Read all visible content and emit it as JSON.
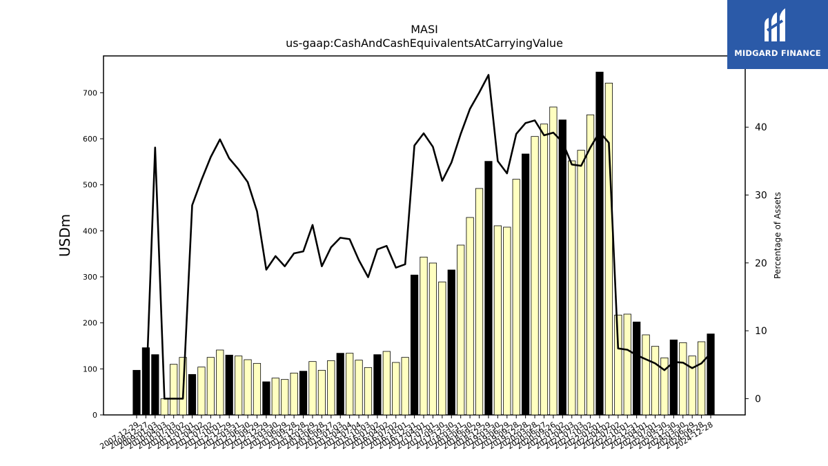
{
  "brand": {
    "name": "MIDGARD FINANCE",
    "color": "#2b5aa8"
  },
  "chart_data": {
    "type": "bar",
    "title": "MASI",
    "subtitle": "us-gaap:CashAndCashEquivalentsAtCarryingValue",
    "ylabel": "USDm",
    "y2label": "Percentage of Assets",
    "ylim": [
      0,
      780
    ],
    "y2lim": [
      -2.4,
      50.5
    ],
    "yticks": [
      0,
      100,
      200,
      300,
      400,
      500,
      600,
      700
    ],
    "y2ticks": [
      0,
      10,
      20,
      30,
      40
    ],
    "legend": "none",
    "grid": false,
    "colors": {
      "fy_bar": "#000000",
      "quarter_bar": "#ffffc0",
      "line": "#000000"
    },
    "categories": [
      "2007-12-29",
      "2008-12-27",
      "2009-01-03",
      "2010-04-03",
      "2010-07-03",
      "2010-10-02",
      "2011-01-01",
      "2011-04-02",
      "2011-07-02",
      "2011-10-01",
      "2012-12-29",
      "2012-03-31",
      "2012-06-30",
      "2012-09-29",
      "2012-12-29",
      "2013-03-30",
      "2013-06-29",
      "2013-09-28",
      "2013-12-28",
      "2014-03-29",
      "2014-06-28",
      "2014-09-27",
      "2015-01-03",
      "2015-04-04",
      "2015-07-04",
      "2015-10-03",
      "2016-01-02",
      "2016-04-02",
      "2016-07-02",
      "2016-10-01",
      "2016-12-31",
      "2017-04-01",
      "2017-07-01",
      "2017-09-30",
      "2017-12-30",
      "2018-03-31",
      "2018-06-30",
      "2018-09-29",
      "2018-12-29",
      "2019-03-30",
      "2019-06-29",
      "2019-09-28",
      "2019-12-28",
      "2020-03-28",
      "2020-06-27",
      "2020-09-26",
      "2021-01-02",
      "2021-04-03",
      "2021-07-03",
      "2021-10-02",
      "2022-01-01",
      "2022-04-02",
      "2022-07-02",
      "2022-10-01",
      "2022-12-31",
      "2023-04-01",
      "2023-07-01",
      "2023-09-30",
      "2023-12-30",
      "2024-03-30",
      "2024-06-29",
      "2024-09-28",
      "2024-12-28"
    ],
    "bar_is_fy": [
      true,
      true,
      true,
      false,
      false,
      false,
      true,
      false,
      false,
      false,
      true,
      false,
      false,
      false,
      true,
      false,
      false,
      false,
      true,
      false,
      false,
      false,
      true,
      false,
      false,
      false,
      true,
      false,
      false,
      false,
      true,
      false,
      false,
      false,
      true,
      false,
      false,
      false,
      true,
      false,
      false,
      false,
      true,
      false,
      false,
      false,
      true,
      false,
      false,
      false,
      true,
      false,
      false,
      false,
      true,
      false,
      false,
      false,
      true,
      false,
      false,
      false,
      true
    ],
    "series": [
      {
        "type": "bar",
        "axis": "left",
        "values": [
          97,
          146,
          131,
          35,
          110,
          125,
          88,
          104,
          125,
          141,
          130,
          128,
          120,
          112,
          72,
          80,
          77,
          91,
          95,
          116,
          97,
          118,
          134,
          134,
          119,
          103,
          131,
          138,
          114,
          125,
          304,
          343,
          330,
          289,
          315,
          369,
          429,
          492,
          551,
          411,
          408,
          512,
          567,
          605,
          632,
          669,
          641,
          552,
          575,
          652,
          745,
          721,
          217,
          219,
          202,
          174,
          149,
          124,
          163,
          157,
          128,
          159,
          176
        ]
      },
      {
        "type": "line",
        "axis": "right",
        "values": [
          null,
          0,
          37,
          0,
          0,
          0,
          28.5,
          32.2,
          35.6,
          38.2,
          35.4,
          33.8,
          31.9,
          27.6,
          19,
          21,
          19.5,
          21.4,
          21.7,
          25.6,
          19.5,
          22.3,
          23.7,
          23.5,
          20.4,
          17.9,
          22,
          22.5,
          19.3,
          19.8,
          37.3,
          39.1,
          37.1,
          32.1,
          34.8,
          39,
          42.7,
          45.1,
          47.7,
          35,
          33.2,
          39,
          40.6,
          41,
          38.8,
          39.2,
          37.8,
          34.5,
          34.3,
          37,
          39.3,
          37.7,
          7.4,
          7.2,
          6.4,
          5.8,
          5.2,
          4.2,
          5.4,
          5.3,
          4.5,
          5.2,
          6.7
        ]
      }
    ]
  }
}
